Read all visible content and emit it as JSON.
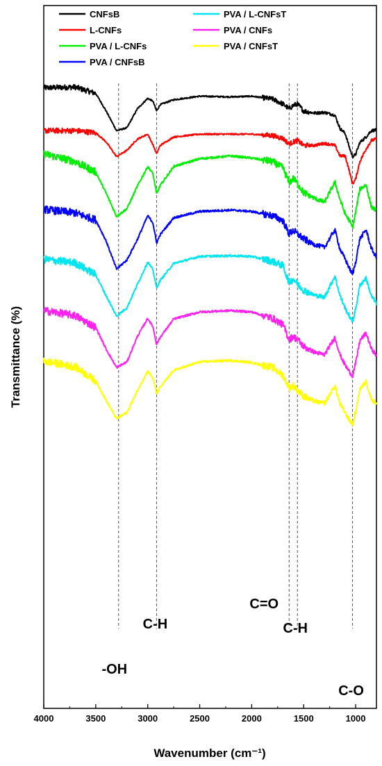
{
  "chart_data": {
    "type": "line",
    "xlabel": "Wavenumber (cm⁻¹)",
    "ylabel": "Transmittance (%)",
    "xlim": [
      4000,
      800
    ],
    "x_reversed": true,
    "ylim": [
      0,
      100
    ],
    "x_ticks": [
      "4000",
      "3500",
      "3000",
      "2500",
      "2000",
      "1500",
      "1000"
    ],
    "x_tick_values": [
      4000,
      3500,
      3000,
      2500,
      2000,
      1500,
      1000
    ],
    "grid": false,
    "legend_position": "top",
    "reference_lines": [
      3280,
      2915,
      1640,
      1560,
      1030
    ],
    "annotations": [
      {
        "text": "-OH",
        "x": 3280
      },
      {
        "text": "C-H",
        "x": 2915
      },
      {
        "text": "C=O",
        "x": 1640
      },
      {
        "text": "C-H",
        "x": 1560
      },
      {
        "text": "C-O",
        "x": 1030
      }
    ],
    "series": [
      {
        "name": "CNFsB",
        "color": "#000000",
        "x": [
          4000,
          3700,
          3500,
          3400,
          3300,
          3200,
          3100,
          3000,
          2950,
          2915,
          2880,
          2750,
          2500,
          2200,
          2000,
          1800,
          1700,
          1640,
          1600,
          1560,
          1500,
          1400,
          1300,
          1200,
          1150,
          1100,
          1060,
          1030,
          1000,
          960,
          900,
          850,
          800
        ],
        "y": [
          88.3,
          88.4,
          87.5,
          85.0,
          82.2,
          82.6,
          85.3,
          86.8,
          86.4,
          85.0,
          85.9,
          86.6,
          87.1,
          87.0,
          87.1,
          86.7,
          86.0,
          85.3,
          85.8,
          86.0,
          85.0,
          84.7,
          84.8,
          84.4,
          82.5,
          81.8,
          79.8,
          78.5,
          78.8,
          80.5,
          81.3,
          82.2,
          82.3
        ]
      },
      {
        "name": "L-CNFs",
        "color": "#ff0000",
        "x": [
          4000,
          3700,
          3500,
          3400,
          3300,
          3200,
          3100,
          3000,
          2950,
          2915,
          2880,
          2750,
          2500,
          2200,
          2000,
          1800,
          1700,
          1640,
          1600,
          1560,
          1500,
          1400,
          1300,
          1200,
          1150,
          1100,
          1060,
          1030,
          1000,
          960,
          900,
          850,
          800
        ],
        "y": [
          82.2,
          82.2,
          81.9,
          80.6,
          78.5,
          79.4,
          81.0,
          81.7,
          80.2,
          78.9,
          80.1,
          81.3,
          81.7,
          81.7,
          81.7,
          81.5,
          81.1,
          80.3,
          80.6,
          80.8,
          80.1,
          80.1,
          80.4,
          80.1,
          78.6,
          78.6,
          76.4,
          74.6,
          75.3,
          77.8,
          79.6,
          80.8,
          81.0
        ]
      },
      {
        "name": "PVA / L-CNFs",
        "color": "#00ee00",
        "x": [
          4000,
          3700,
          3500,
          3400,
          3300,
          3200,
          3100,
          3000,
          2950,
          2915,
          2880,
          2750,
          2500,
          2200,
          2000,
          1800,
          1700,
          1640,
          1600,
          1560,
          1500,
          1400,
          1300,
          1200,
          1150,
          1100,
          1060,
          1030,
          1000,
          960,
          900,
          850,
          800
        ],
        "y": [
          78.9,
          77.8,
          76.3,
          73.3,
          70.0,
          71.1,
          74.3,
          77.1,
          76.1,
          73.2,
          74.4,
          77.1,
          78.2,
          78.6,
          78.3,
          77.8,
          76.9,
          74.8,
          75.4,
          74.7,
          73.4,
          72.6,
          72.0,
          74.9,
          72.4,
          70.3,
          69.4,
          68.4,
          70.6,
          73.9,
          74.5,
          71.4,
          70.8
        ]
      },
      {
        "name": "PVA / CNFsB",
        "color": "#0000ff",
        "x": [
          4000,
          3700,
          3500,
          3400,
          3300,
          3200,
          3100,
          3000,
          2950,
          2915,
          2880,
          2750,
          2500,
          2200,
          2000,
          1800,
          1700,
          1640,
          1600,
          1560,
          1500,
          1400,
          1300,
          1200,
          1150,
          1100,
          1060,
          1030,
          1000,
          960,
          900,
          850,
          800
        ],
        "y": [
          71.0,
          70.5,
          69.5,
          66.5,
          62.5,
          63.8,
          66.7,
          70.1,
          69.1,
          66.2,
          67.4,
          69.8,
          70.7,
          70.9,
          70.7,
          70.1,
          69.4,
          67.5,
          68.0,
          67.5,
          66.8,
          66.0,
          65.6,
          68.1,
          65.3,
          63.9,
          62.6,
          61.7,
          63.5,
          66.8,
          68.1,
          65.5,
          64.1
        ]
      },
      {
        "name": "PVA / L-CNFsT",
        "color": "#00e5ee",
        "x": [
          4000,
          3700,
          3500,
          3400,
          3300,
          3200,
          3100,
          3000,
          2950,
          2915,
          2880,
          2750,
          2500,
          2200,
          2000,
          1800,
          1700,
          1640,
          1600,
          1560,
          1500,
          1400,
          1300,
          1200,
          1150,
          1100,
          1060,
          1030,
          1000,
          960,
          900,
          850,
          800
        ],
        "y": [
          63.9,
          63.4,
          61.7,
          58.7,
          55.8,
          57.0,
          60.3,
          63.5,
          62.4,
          59.8,
          60.9,
          63.3,
          64.3,
          64.4,
          64.3,
          63.6,
          63.0,
          60.6,
          61.1,
          60.4,
          59.5,
          58.8,
          58.5,
          61.5,
          58.7,
          56.9,
          55.8,
          55.0,
          56.8,
          60.2,
          61.2,
          58.7,
          57.6
        ]
      },
      {
        "name": "PVA / CNFs",
        "color": "#ff22ee",
        "x": [
          4000,
          3700,
          3500,
          3400,
          3300,
          3200,
          3100,
          3000,
          2950,
          2915,
          2880,
          2750,
          2500,
          2200,
          2000,
          1800,
          1700,
          1640,
          1600,
          1560,
          1500,
          1400,
          1300,
          1200,
          1150,
          1100,
          1060,
          1030,
          1000,
          960,
          900,
          850,
          800
        ],
        "y": [
          56.6,
          55.9,
          54.2,
          51.1,
          48.5,
          49.3,
          52.9,
          55.5,
          54.3,
          51.8,
          52.8,
          55.4,
          56.4,
          56.6,
          56.4,
          55.5,
          54.6,
          52.5,
          52.9,
          52.5,
          51.5,
          50.7,
          50.3,
          52.8,
          50.3,
          48.8,
          47.9,
          47.3,
          49.1,
          52.3,
          53.4,
          51.2,
          50.2
        ]
      },
      {
        "name": "PVA / CNFsT",
        "color": "#ffff00",
        "x": [
          4000,
          3700,
          3500,
          3400,
          3300,
          3200,
          3100,
          3000,
          2950,
          2915,
          2880,
          2750,
          2500,
          2200,
          2000,
          1800,
          1700,
          1640,
          1600,
          1560,
          1500,
          1400,
          1300,
          1200,
          1150,
          1100,
          1060,
          1030,
          1000,
          960,
          900,
          850,
          800
        ],
        "y": [
          49.4,
          48.6,
          46.6,
          43.8,
          41.2,
          42.1,
          45.2,
          48.0,
          47.0,
          44.8,
          45.7,
          48.1,
          49.3,
          49.5,
          49.2,
          48.5,
          47.4,
          45.6,
          45.9,
          45.3,
          44.4,
          43.7,
          43.4,
          45.9,
          43.3,
          42.0,
          41.0,
          40.4,
          42.2,
          45.4,
          46.5,
          44.0,
          43.4
        ]
      }
    ]
  }
}
